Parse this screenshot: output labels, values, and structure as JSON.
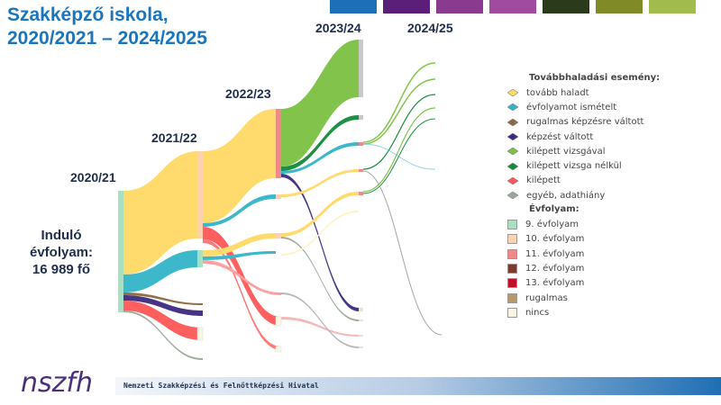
{
  "header": {
    "title": "Szakképző iskola,\n2020/2021 – 2024/2025",
    "palette": [
      "#1d6fb8",
      "#5b1f7a",
      "#8a3a8f",
      "#a04aa0",
      "#2c3a1c",
      "#808a26",
      "#a2bb4d"
    ]
  },
  "years": {
    "y2020": "2020/21",
    "y2021": "2021/22",
    "y2022": "2022/23",
    "y2023": "2023/24",
    "y2024": "2024/25"
  },
  "start_label": "Induló\névfolyam:\n16 989 fő",
  "legend": {
    "events_title": "Továbbhaladási esemény:",
    "events": [
      {
        "label": "tovább haladt",
        "color": "#ffd966"
      },
      {
        "label": "évfolyamot ismételt",
        "color": "#33b5c8"
      },
      {
        "label": "rugalmas képzésre váltott",
        "color": "#8b6a3e"
      },
      {
        "label": "képzést váltott",
        "color": "#3f2a7e"
      },
      {
        "label": "kilépett vizsgával",
        "color": "#7cc142"
      },
      {
        "label": "kilépett vizsga nélkül",
        "color": "#148a3c"
      },
      {
        "label": "kilépett",
        "color": "#ff5757"
      },
      {
        "label": "egyéb, adathiány",
        "color": "#9aa79a"
      }
    ],
    "grades_title": "Évfolyam:",
    "grades": [
      {
        "label": "9. évfolyam",
        "color": "#a8e0c4"
      },
      {
        "label": "10. évfolyam",
        "color": "#fcd2b0"
      },
      {
        "label": "11. évfolyam",
        "color": "#f08a8a"
      },
      {
        "label": "12. évfolyam",
        "color": "#7a3a30"
      },
      {
        "label": "13. évfolyam",
        "color": "#c0102c"
      },
      {
        "label": "rugalmas",
        "color": "#b79a6a"
      },
      {
        "label": "nincs",
        "color": "#fbf6e4"
      }
    ]
  },
  "footer": {
    "institution": "Nemzeti Szakképzési és Felnőttképzési Hivatal",
    "logo_text": "nszfh"
  }
}
